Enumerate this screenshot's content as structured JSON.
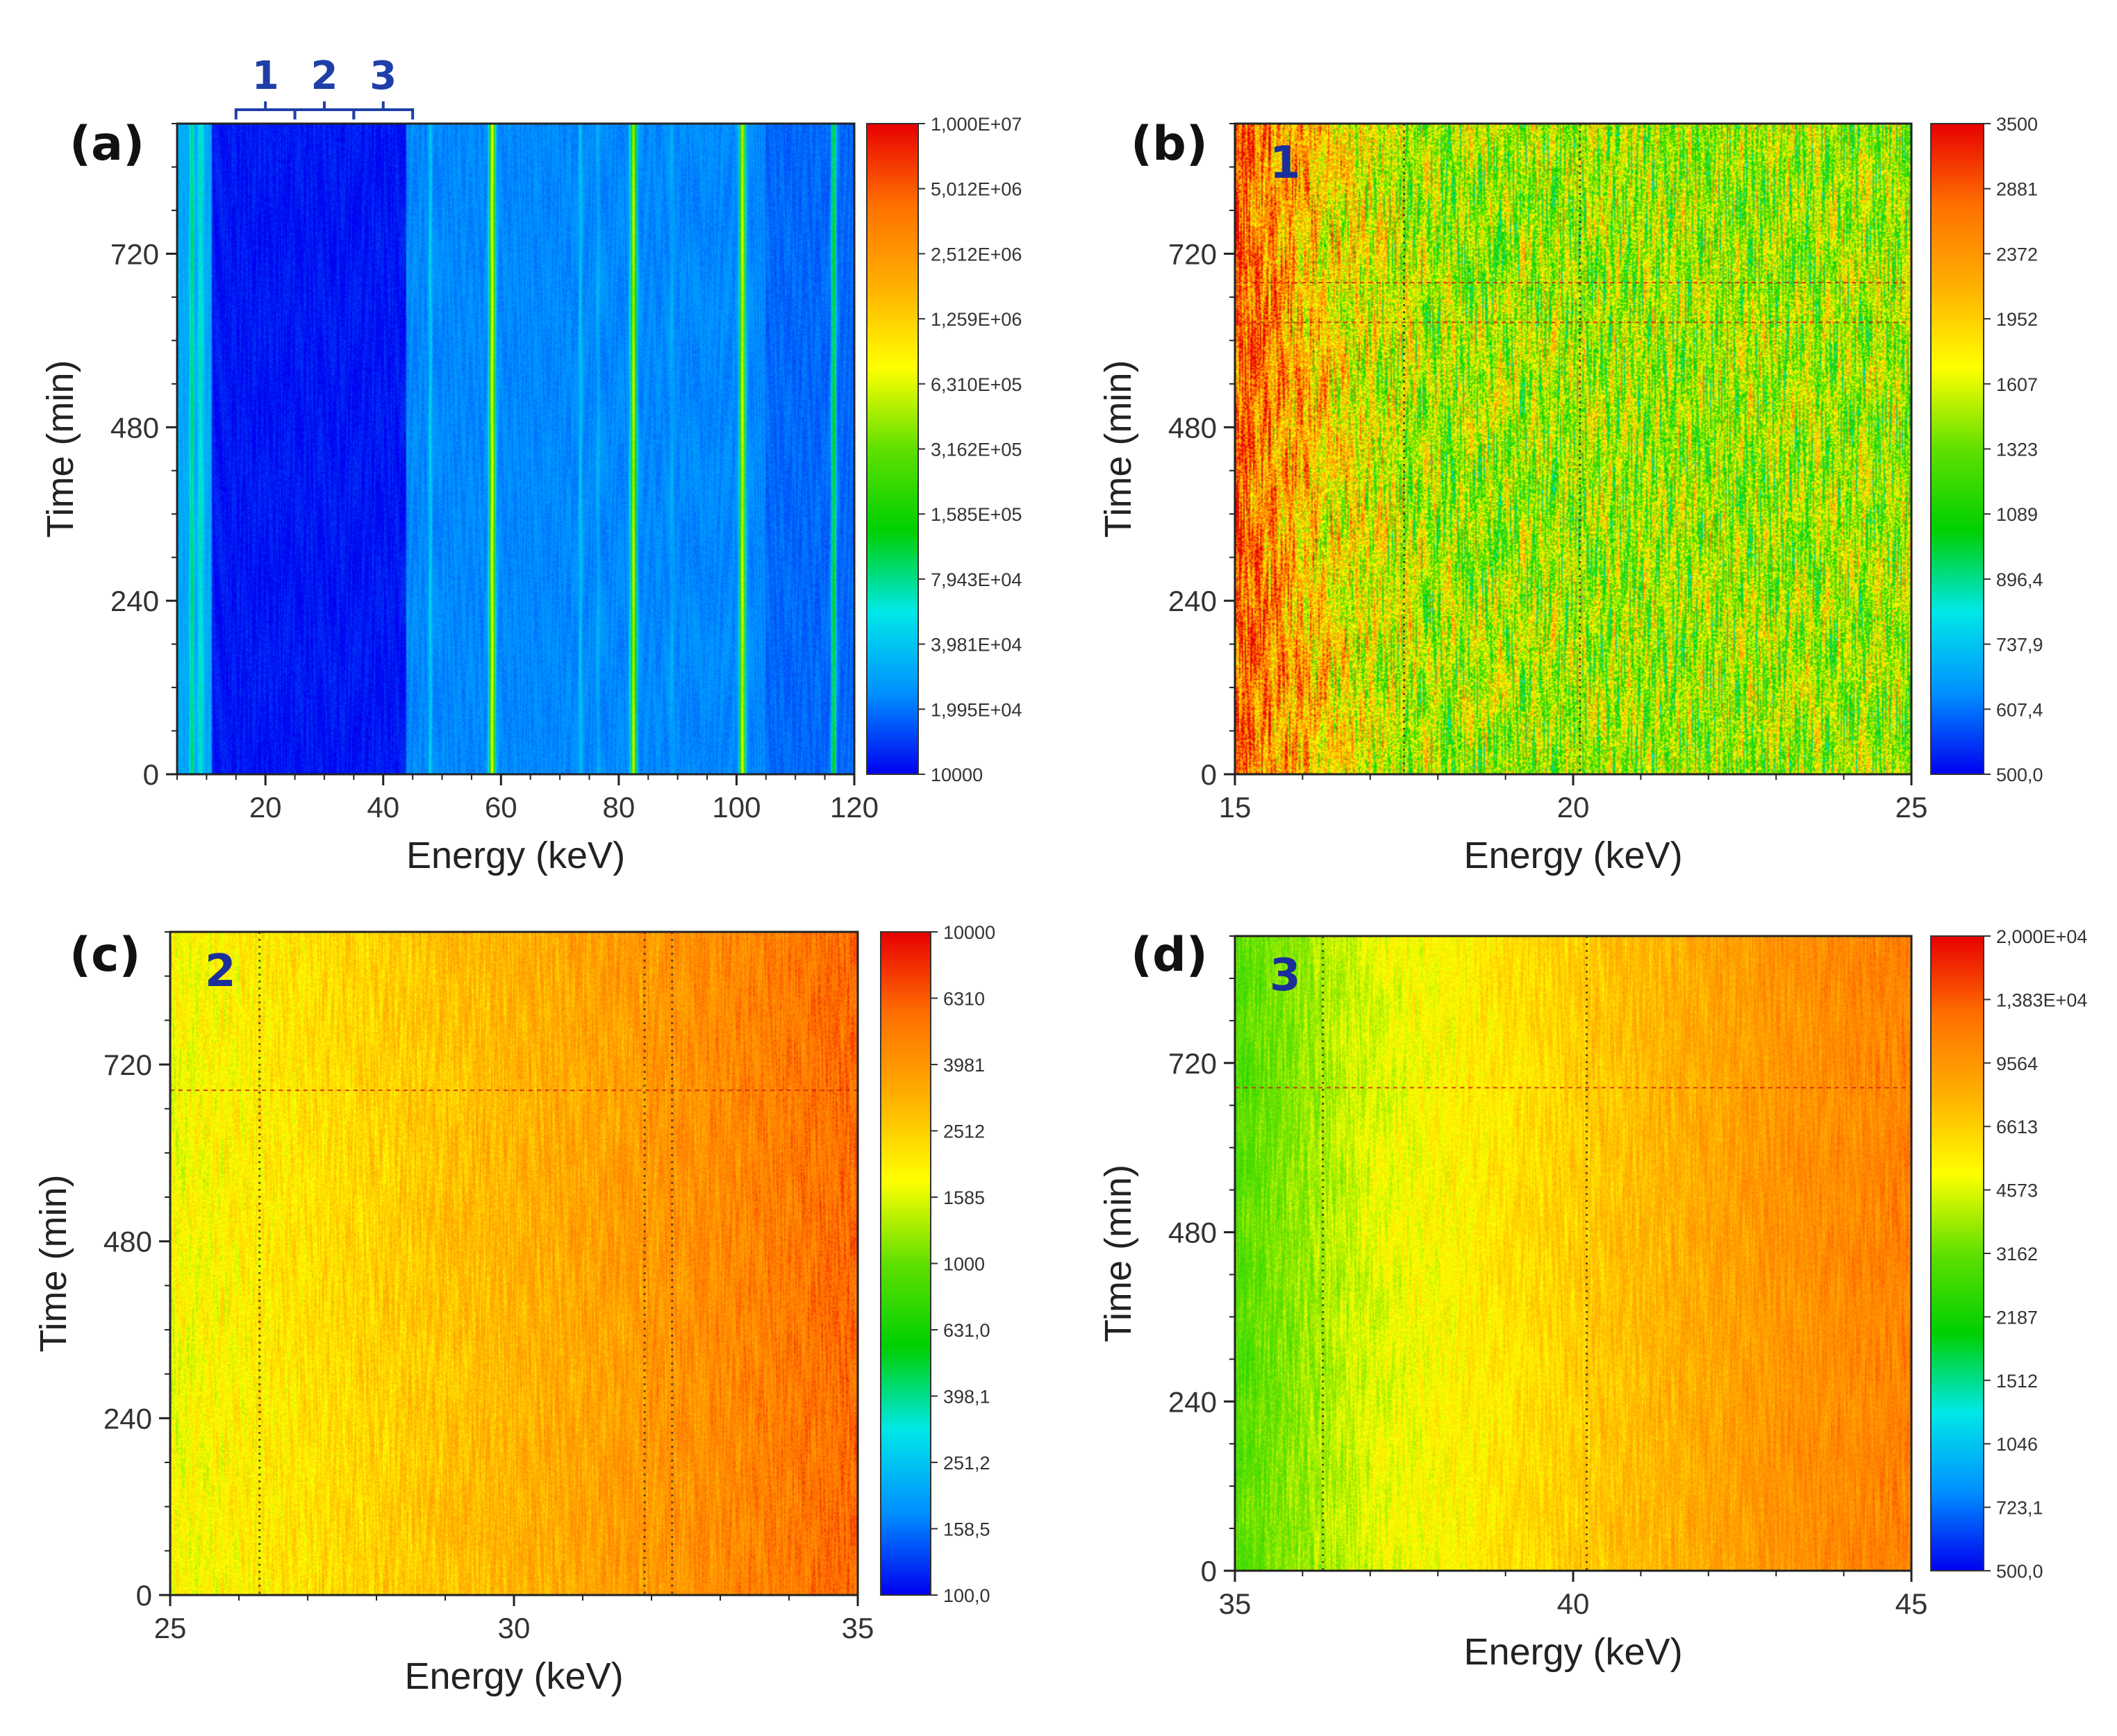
{
  "figure": {
    "region_brackets": {
      "labels": [
        "1",
        "2",
        "3"
      ],
      "energy_edges_keV": [
        15,
        25,
        35,
        45
      ],
      "color": "#1f3fa8"
    }
  },
  "palette": {
    "stops": [
      "#0000f0",
      "#0090ff",
      "#00e8e8",
      "#00d000",
      "#60e000",
      "#ffff00",
      "#ffb000",
      "#ff7000",
      "#e80000"
    ]
  },
  "chart_data": [
    {
      "panel": "(a)",
      "type": "heatmap",
      "region_tag": "",
      "xlabel": "Energy (keV)",
      "ylabel": "Time (min)",
      "xlim": [
        5,
        120
      ],
      "ylim": [
        0,
        900
      ],
      "xticks": [
        20,
        40,
        60,
        80,
        100,
        120
      ],
      "yticks": [
        0,
        240,
        480,
        720
      ],
      "colorbar_scale": "log",
      "colorbar_range": [
        10000,
        10000000
      ],
      "colorbar_labels": [
        "10000",
        "1,995E+04",
        "3,981E+04",
        "7,943E+04",
        "1,585E+05",
        "3,162E+05",
        "6,310E+05",
        "1,259E+06",
        "2,512E+06",
        "5,012E+06",
        "1,000E+07"
      ],
      "style": "lines",
      "background_level": 0.03,
      "lines": [
        {
          "energy": 7.5,
          "level": 0.35,
          "width": 0.5
        },
        {
          "energy": 9.0,
          "level": 0.28,
          "width": 0.7
        },
        {
          "energy": 48.0,
          "level": 0.22,
          "width": 0.5
        },
        {
          "energy": 58.5,
          "level": 0.62,
          "width": 0.8
        },
        {
          "energy": 73.5,
          "level": 0.2,
          "width": 0.5
        },
        {
          "energy": 76.5,
          "level": 0.17,
          "width": 0.5
        },
        {
          "energy": 82.5,
          "level": 0.58,
          "width": 0.8
        },
        {
          "energy": 89.0,
          "level": 0.16,
          "width": 0.6
        },
        {
          "energy": 101.0,
          "level": 0.6,
          "width": 0.8
        },
        {
          "energy": 116.5,
          "level": 0.38,
          "width": 0.6
        }
      ],
      "band_levels": [
        {
          "from": 5,
          "to": 11,
          "level": 0.16
        },
        {
          "from": 11,
          "to": 44,
          "level": 0.02
        },
        {
          "from": 44,
          "to": 105,
          "level": 0.12
        },
        {
          "from": 105,
          "to": 120,
          "level": 0.09
        }
      ]
    },
    {
      "panel": "(b)",
      "type": "heatmap",
      "region_tag": "1",
      "xlabel": "Energy (keV)",
      "ylabel": "Time (min)",
      "xlim": [
        15,
        25
      ],
      "ylim": [
        0,
        900
      ],
      "xticks": [
        15,
        20,
        25
      ],
      "yticks": [
        0,
        240,
        480,
        720
      ],
      "colorbar_scale": "log",
      "colorbar_range": [
        500,
        3500
      ],
      "colorbar_labels": [
        "500,0",
        "607,4",
        "737,9",
        "896,4",
        "1089",
        "1323",
        "1607",
        "1952",
        "2372",
        "2881",
        "3500"
      ],
      "style": "noisy",
      "gradient": [
        {
          "energy": 15,
          "level": 0.9
        },
        {
          "energy": 16.5,
          "level": 0.66
        },
        {
          "energy": 18,
          "level": 0.55
        },
        {
          "energy": 25,
          "level": 0.55
        }
      ],
      "noise": 0.34,
      "dotted_lines": [
        17.5,
        20.1
      ],
      "dashed_hlines": [
        680,
        625
      ]
    },
    {
      "panel": "(c)",
      "type": "heatmap",
      "region_tag": "2",
      "xlabel": "Energy (keV)",
      "ylabel": "Time (min)",
      "xlim": [
        25,
        35
      ],
      "ylim": [
        0,
        900
      ],
      "xticks": [
        25,
        30,
        35
      ],
      "yticks": [
        0,
        240,
        480,
        720
      ],
      "colorbar_scale": "log",
      "colorbar_range": [
        100,
        10000
      ],
      "colorbar_labels": [
        "100,0",
        "158,5",
        "251,2",
        "398,1",
        "631,0",
        "1000",
        "1585",
        "2512",
        "3981",
        "6310",
        "10000"
      ],
      "style": "noisy",
      "gradient": [
        {
          "energy": 25,
          "level": 0.62
        },
        {
          "energy": 29,
          "level": 0.72
        },
        {
          "energy": 33,
          "level": 0.82
        },
        {
          "energy": 35,
          "level": 0.88
        }
      ],
      "noise": 0.09,
      "dotted_lines": [
        26.3,
        31.9,
        32.3
      ],
      "dashed_hlines": [
        685
      ]
    },
    {
      "panel": "(d)",
      "type": "heatmap",
      "region_tag": "3",
      "xlabel": "Energy (keV)",
      "ylabel": "Time (min)",
      "xlim": [
        35,
        45
      ],
      "ylim": [
        0,
        900
      ],
      "xticks": [
        35,
        40,
        45
      ],
      "yticks": [
        0,
        240,
        480,
        720
      ],
      "colorbar_scale": "log",
      "colorbar_range": [
        500,
        20000
      ],
      "colorbar_labels": [
        "500,0",
        "723,1",
        "1046",
        "1512",
        "2187",
        "3162",
        "4573",
        "6613",
        "9564",
        "1,383E+04",
        "2,000E+04"
      ],
      "style": "noisy",
      "gradient": [
        {
          "energy": 35,
          "level": 0.48
        },
        {
          "energy": 37,
          "level": 0.6
        },
        {
          "energy": 40,
          "level": 0.7
        },
        {
          "energy": 43,
          "level": 0.8
        },
        {
          "energy": 45,
          "level": 0.84
        }
      ],
      "noise": 0.08,
      "dotted_lines": [
        36.3,
        40.2
      ],
      "dashed_hlines": [
        685
      ]
    }
  ]
}
